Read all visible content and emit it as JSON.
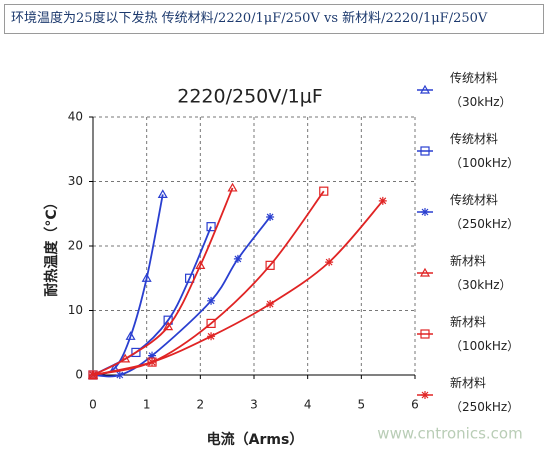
{
  "header": {
    "title": "环境温度为25度以下发热 传统材料/2220/1μF/250V vs 新材料/2220/1μF/250V"
  },
  "chart_data": {
    "type": "line",
    "title": "2220/250V/1μF",
    "x_label": "电流（Arms）",
    "y_label": "耐热温度（°C）",
    "xlim": [
      0,
      6
    ],
    "xticks": [
      0,
      1,
      2,
      3,
      4,
      5,
      6
    ],
    "ylim": [
      0,
      40
    ],
    "yticks": [
      0,
      10,
      20,
      30,
      40
    ],
    "grid": true,
    "legend": "right",
    "series": [
      {
        "name": "传统材料\n（30kHz）",
        "color": "#2a3fd0",
        "marker": "triangle",
        "x": [
          0,
          0.4,
          0.7,
          1.0,
          1.3
        ],
        "values": [
          0,
          1,
          6,
          15,
          28
        ]
      },
      {
        "name": "传统材料\n（100kHz）",
        "color": "#2a3fd0",
        "marker": "square",
        "x": [
          0,
          0.8,
          1.4,
          1.8,
          2.2
        ],
        "values": [
          0,
          3.5,
          8.5,
          15,
          23
        ]
      },
      {
        "name": "传统材料\n（250kHz）",
        "color": "#2a3fd0",
        "marker": "star",
        "x": [
          0,
          0.5,
          1.1,
          2.2,
          2.7,
          3.3
        ],
        "values": [
          0,
          0,
          3,
          11.5,
          18,
          24.5
        ]
      },
      {
        "name": "新材料\n（30kHz）",
        "color": "#e02424",
        "marker": "triangle",
        "x": [
          0,
          0.6,
          1.4,
          2.0,
          2.6
        ],
        "values": [
          0,
          2.5,
          7.5,
          17,
          29
        ]
      },
      {
        "name": "新材料\n（100kHz）",
        "color": "#e02424",
        "marker": "square",
        "x": [
          0,
          1.1,
          2.2,
          3.3,
          4.3
        ],
        "values": [
          0,
          2,
          8,
          17,
          28.5
        ]
      },
      {
        "name": "新材料\n（250kHz）",
        "color": "#e02424",
        "marker": "star",
        "x": [
          0,
          1.1,
          2.2,
          3.3,
          4.4,
          5.4
        ],
        "values": [
          0,
          2,
          6,
          11,
          17.5,
          27
        ]
      }
    ]
  },
  "watermark": "www.cntronics.com"
}
